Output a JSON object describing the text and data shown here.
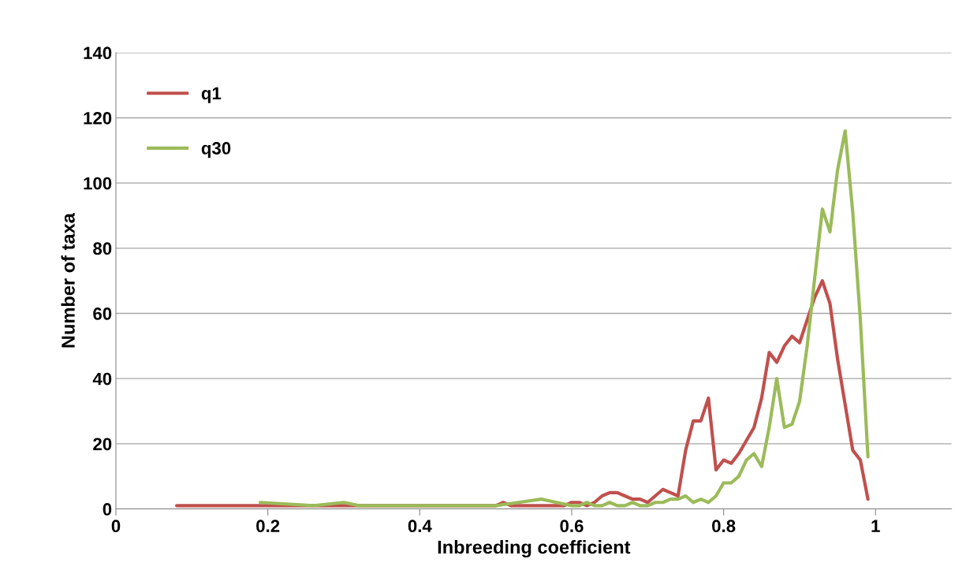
{
  "chart_data": {
    "type": "line",
    "xlabel": "Inbreeding coefficient",
    "ylabel": "Number of taxa",
    "xlim": [
      0,
      1.1
    ],
    "xticks": [
      0,
      {
        "value": 0.2,
        "label": "0.2"
      },
      {
        "value": 0.4,
        "label": "0.4"
      },
      {
        "value": 0.6,
        "label": "0.6"
      },
      {
        "value": 0.8,
        "label": "0.8"
      },
      1
    ],
    "ylim": [
      0,
      140
    ],
    "yticks": [
      0,
      20,
      40,
      60,
      80,
      100,
      120,
      140
    ],
    "grid": "y",
    "legend": "top left",
    "marker": "none",
    "line_style": "solid",
    "series": [
      {
        "name": "q1",
        "color": "#c0504d",
        "x": [
          0.08,
          0.2,
          0.3,
          0.4,
          0.5,
          0.51,
          0.52,
          0.56,
          0.59,
          0.6,
          0.61,
          0.62,
          0.63,
          0.64,
          0.65,
          0.66,
          0.67,
          0.68,
          0.69,
          0.7,
          0.71,
          0.72,
          0.73,
          0.74,
          0.75,
          0.76,
          0.77,
          0.78,
          0.79,
          0.8,
          0.81,
          0.82,
          0.83,
          0.84,
          0.85,
          0.86,
          0.87,
          0.88,
          0.89,
          0.9,
          0.91,
          0.92,
          0.93,
          0.94,
          0.95,
          0.96,
          0.97,
          0.98,
          0.99
        ],
        "values": [
          1,
          1,
          1,
          1,
          1,
          2,
          1,
          1,
          1,
          2,
          2,
          1,
          2,
          4,
          5,
          5,
          4,
          3,
          3,
          2,
          4,
          6,
          5,
          4,
          18,
          27,
          27,
          34,
          12,
          15,
          14,
          17,
          21,
          25,
          34,
          48,
          45,
          50,
          53,
          51,
          58,
          65,
          70,
          63,
          46,
          32,
          18,
          15,
          3
        ]
      },
      {
        "name": "q30",
        "color": "#9bbb59",
        "x": [
          0.19,
          0.26,
          0.3,
          0.32,
          0.4,
          0.5,
          0.53,
          0.56,
          0.58,
          0.6,
          0.61,
          0.62,
          0.63,
          0.64,
          0.65,
          0.66,
          0.67,
          0.68,
          0.69,
          0.7,
          0.71,
          0.72,
          0.73,
          0.74,
          0.75,
          0.76,
          0.77,
          0.78,
          0.79,
          0.8,
          0.81,
          0.82,
          0.83,
          0.84,
          0.85,
          0.86,
          0.87,
          0.88,
          0.89,
          0.9,
          0.91,
          0.92,
          0.93,
          0.94,
          0.95,
          0.96,
          0.97,
          0.98,
          0.99
        ],
        "values": [
          2,
          1,
          2,
          1,
          1,
          1,
          2,
          3,
          2,
          1,
          1,
          2,
          1,
          1,
          2,
          1,
          1,
          2,
          1,
          1,
          2,
          2,
          3,
          3,
          4,
          2,
          3,
          2,
          4,
          8,
          8,
          10,
          15,
          17,
          13,
          25,
          40,
          25,
          26,
          33,
          50,
          71,
          92,
          85,
          104,
          116,
          91,
          58,
          16
        ]
      }
    ]
  }
}
